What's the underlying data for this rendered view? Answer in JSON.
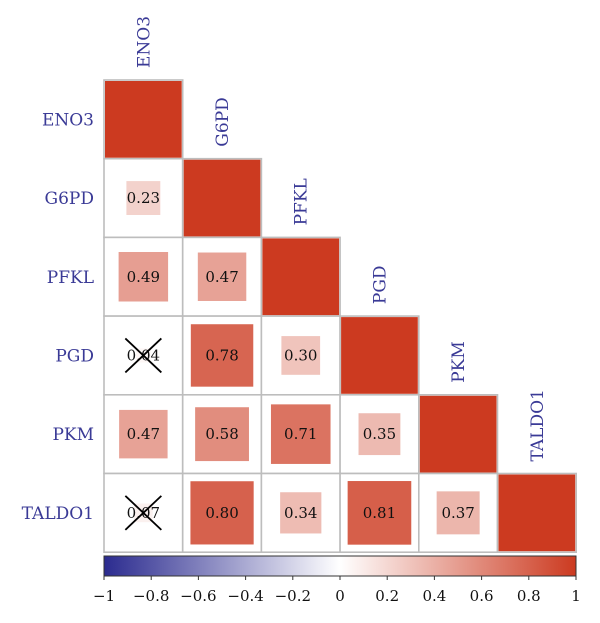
{
  "chart_data": {
    "type": "heatmap",
    "variables": [
      "ENO3",
      "G6PD",
      "PFKL",
      "PGD",
      "PKM",
      "TALDO1"
    ],
    "matrix": [
      [
        1,
        null,
        null,
        null,
        null,
        null
      ],
      [
        0.23,
        1,
        null,
        null,
        null,
        null
      ],
      [
        0.49,
        0.47,
        1,
        null,
        null,
        null
      ],
      [
        0.04,
        0.78,
        0.3,
        1,
        null,
        null
      ],
      [
        0.47,
        0.58,
        0.71,
        0.35,
        1,
        null
      ],
      [
        0.07,
        0.8,
        0.34,
        0.81,
        0.37,
        1
      ]
    ],
    "value_labels": [
      [
        null,
        null,
        null,
        null,
        null,
        null
      ],
      [
        "0.23",
        null,
        null,
        null,
        null,
        null
      ],
      [
        "0.49",
        "0.47",
        null,
        null,
        null,
        null
      ],
      [
        "0.04",
        "0.78",
        "0.30",
        null,
        null,
        null
      ],
      [
        "0.47",
        "0.58",
        "0.71",
        "0.35",
        null,
        null
      ],
      [
        "0.07",
        "0.80",
        "0.34",
        "0.81",
        "0.37",
        null
      ]
    ],
    "insignificant": [
      [
        3,
        0
      ],
      [
        5,
        0
      ]
    ],
    "colorbar": {
      "range": [
        -1,
        1
      ],
      "ticks": [
        "−1",
        "−0.8",
        "−0.6",
        "−0.4",
        "−0.2",
        "0",
        "0.2",
        "0.4",
        "0.6",
        "0.8",
        "1"
      ],
      "tick_values": [
        -1,
        -0.8,
        -0.6,
        -0.4,
        -0.2,
        0,
        0.2,
        0.4,
        0.6,
        0.8,
        1
      ],
      "colors": {
        "negative": "#2b2b8f",
        "zero": "#ffffff",
        "positive": "#cc3a20"
      }
    },
    "layout": "lower-triangle",
    "legend_position": "bottom"
  }
}
